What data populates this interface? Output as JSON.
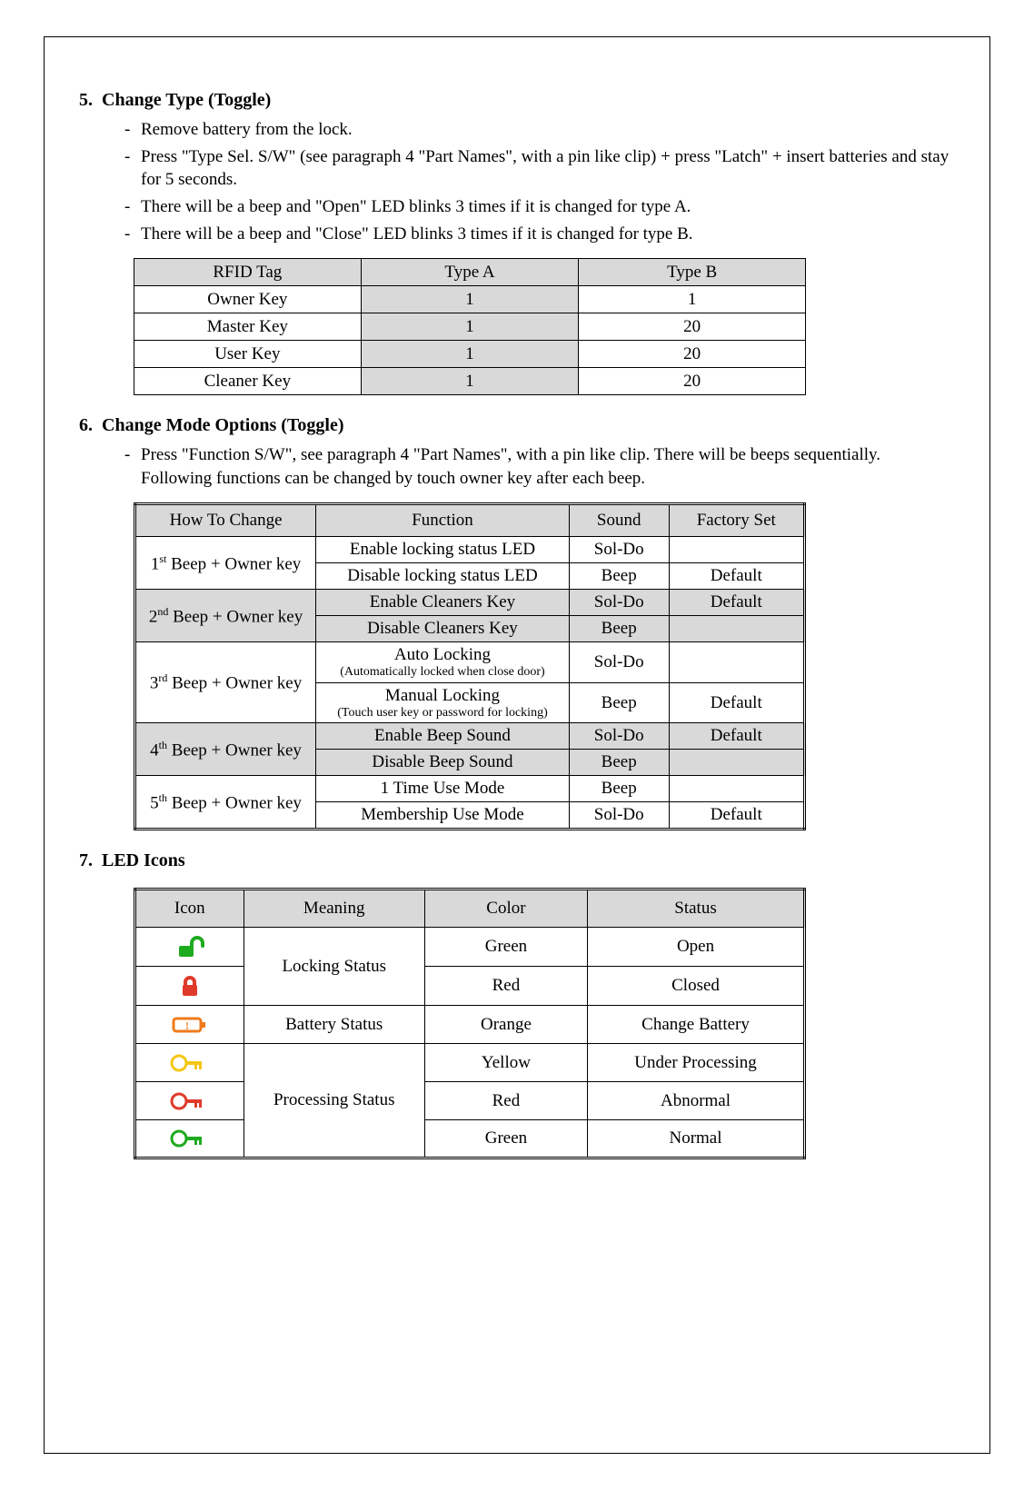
{
  "section5": {
    "number": "5.",
    "title": "Change Type (Toggle)",
    "bullets": [
      "Remove battery from the lock.",
      "Press \"Type Sel. S/W\" (see paragraph 4 \"Part Names\", with a pin like clip) + press \"Latch\" + insert batteries and stay for 5 seconds.",
      "There will be a beep and \"Open\" LED blinks 3 times if it is changed for type A.",
      "There will be a beep and \"Close\" LED blinks 3 times if it is changed for type B."
    ],
    "table": {
      "headers": [
        "RFID Tag",
        "Type A",
        "Type B"
      ],
      "rows": [
        [
          "Owner Key",
          "1",
          "1"
        ],
        [
          "Master Key",
          "1",
          "20"
        ],
        [
          "User Key",
          "1",
          "20"
        ],
        [
          "Cleaner Key",
          "1",
          "20"
        ]
      ]
    }
  },
  "section6": {
    "number": "6.",
    "title": "Change Mode Options (Toggle)",
    "bullets": [
      "Press \"Function S/W\", see paragraph 4 \"Part Names\", with a pin like clip. There will be beeps sequentially. Following functions can be changed by touch owner key after each beep."
    ],
    "table": {
      "headers": [
        "How To Change",
        "Function",
        "Sound",
        "Factory Set"
      ],
      "groups": [
        {
          "label_num": "1",
          "label_ord": "st",
          "label_suffix": " Beep + Owner key",
          "rows": [
            {
              "function": "Enable locking status LED",
              "sound": "Sol-Do",
              "factory": ""
            },
            {
              "function": "Disable locking status LED",
              "sound": "Beep",
              "factory": "Default"
            }
          ]
        },
        {
          "label_num": "2",
          "label_ord": "nd",
          "label_suffix": " Beep + Owner key",
          "rows": [
            {
              "function": "Enable Cleaners Key",
              "sound": "Sol-Do",
              "factory": "Default"
            },
            {
              "function": "Disable Cleaners Key",
              "sound": "Beep",
              "factory": ""
            }
          ]
        },
        {
          "label_num": "3",
          "label_ord": "rd",
          "label_suffix": " Beep + Owner key",
          "rows": [
            {
              "function": "Auto Locking",
              "sub": "(Automatically locked when close door)",
              "sound": "Sol-Do",
              "factory": ""
            },
            {
              "function": "Manual Locking",
              "sub": "(Touch user key or password for locking)",
              "sound": "Beep",
              "factory": "Default"
            }
          ]
        },
        {
          "label_num": "4",
          "label_ord": "th",
          "label_suffix": " Beep + Owner key",
          "rows": [
            {
              "function": "Enable Beep Sound",
              "sound": "Sol-Do",
              "factory": "Default"
            },
            {
              "function": "Disable Beep Sound",
              "sound": "Beep",
              "factory": ""
            }
          ]
        },
        {
          "label_num": "5",
          "label_ord": "th",
          "label_suffix": " Beep + Owner key",
          "rows": [
            {
              "function": "1 Time Use Mode",
              "sound": "Beep",
              "factory": ""
            },
            {
              "function": "Membership Use Mode",
              "sound": "Sol-Do",
              "factory": "Default"
            }
          ]
        }
      ]
    }
  },
  "section7": {
    "number": "7.",
    "title": "LED Icons",
    "table": {
      "headers": [
        "Icon",
        "Meaning",
        "Color",
        "Status"
      ],
      "rows": [
        {
          "icon": "lock-open-green",
          "meaning": "Locking Status",
          "color": "Green",
          "status": "Open",
          "rowspan_meaning": 2
        },
        {
          "icon": "lock-closed-red",
          "meaning": "",
          "color": "Red",
          "status": "Closed"
        },
        {
          "icon": "battery-orange",
          "meaning": "Battery Status",
          "color": "Orange",
          "status": "Change Battery",
          "rowspan_meaning": 1
        },
        {
          "icon": "key-yellow",
          "meaning": "Processing Status",
          "color": "Yellow",
          "status": "Under Processing",
          "rowspan_meaning": 3
        },
        {
          "icon": "key-red",
          "meaning": "",
          "color": "Red",
          "status": "Abnormal"
        },
        {
          "icon": "key-green",
          "meaning": "",
          "color": "Green",
          "status": "Normal"
        }
      ],
      "icon_colors": {
        "lock-open-green": "#1eaa1e",
        "lock-closed-red": "#e03a2a",
        "battery-orange": "#ef7b1a",
        "key-yellow": "#f5c614",
        "key-red": "#e03a2a",
        "key-green": "#1eaa1e"
      }
    }
  }
}
